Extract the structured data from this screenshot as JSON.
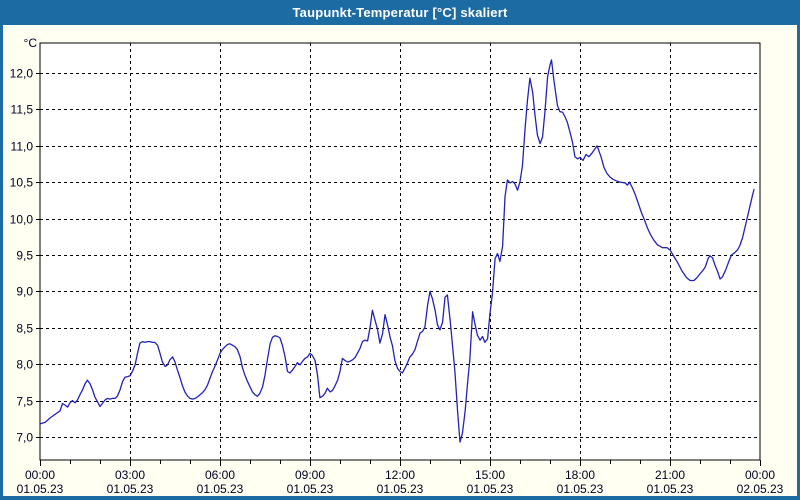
{
  "window": {
    "title": "Taupunkt-Temperatur [°C] skaliert"
  },
  "colors": {
    "titlebar_bg": "#1d6ba3",
    "titlebar_text": "#ffffff",
    "window_bg": "#fffff2",
    "plot_bg": "#ffffff",
    "grid": "#000000",
    "axis_text": "#000022",
    "line": "#2222bb"
  },
  "chart_data": {
    "type": "line",
    "title": "Taupunkt-Temperatur [°C] skaliert",
    "y_unit": "°C",
    "grid": "dotted",
    "legend": "none",
    "xlim_hours": [
      0,
      24
    ],
    "ylim": [
      6.684,
      12.412
    ],
    "yticks": [
      {
        "v": 7.0,
        "label": "7,0"
      },
      {
        "v": 7.5,
        "label": "7,5"
      },
      {
        "v": 8.0,
        "label": "8,0"
      },
      {
        "v": 8.5,
        "label": "8,5"
      },
      {
        "v": 9.0,
        "label": "9,0"
      },
      {
        "v": 9.5,
        "label": "9,5"
      },
      {
        "v": 10.0,
        "label": "10,0"
      },
      {
        "v": 10.5,
        "label": "10,5"
      },
      {
        "v": 11.0,
        "label": "11,0"
      },
      {
        "v": 11.5,
        "label": "11,5"
      },
      {
        "v": 12.0,
        "label": "12,0"
      }
    ],
    "xticks": [
      {
        "t": 0,
        "time": "00:00",
        "date": "01.05.23"
      },
      {
        "t": 3,
        "time": "03:00",
        "date": "01.05.23"
      },
      {
        "t": 6,
        "time": "06:00",
        "date": "01.05.23"
      },
      {
        "t": 9,
        "time": "09:00",
        "date": "01.05.23"
      },
      {
        "t": 12,
        "time": "12:00",
        "date": "01.05.23"
      },
      {
        "t": 15,
        "time": "15:00",
        "date": "01.05.23"
      },
      {
        "t": 18,
        "time": "18:00",
        "date": "01.05.23"
      },
      {
        "t": 21,
        "time": "21:00",
        "date": "01.05.23"
      },
      {
        "t": 24,
        "time": "00:00",
        "date": "02.05.23"
      }
    ],
    "series": [
      {
        "name": "Taupunkt-Temperatur",
        "color": "#2222bb",
        "points": [
          [
            0.0,
            7.18
          ],
          [
            0.17,
            7.2
          ],
          [
            0.33,
            7.26
          ],
          [
            0.5,
            7.31
          ],
          [
            0.67,
            7.36
          ],
          [
            0.75,
            7.46
          ],
          [
            0.83,
            7.44
          ],
          [
            0.92,
            7.41
          ],
          [
            1.0,
            7.47
          ],
          [
            1.08,
            7.5
          ],
          [
            1.17,
            7.47
          ],
          [
            1.25,
            7.51
          ],
          [
            1.33,
            7.58
          ],
          [
            1.42,
            7.65
          ],
          [
            1.5,
            7.73
          ],
          [
            1.58,
            7.78
          ],
          [
            1.67,
            7.73
          ],
          [
            1.75,
            7.65
          ],
          [
            1.83,
            7.55
          ],
          [
            1.92,
            7.48
          ],
          [
            2.0,
            7.42
          ],
          [
            2.08,
            7.46
          ],
          [
            2.17,
            7.51
          ],
          [
            2.25,
            7.53
          ],
          [
            2.33,
            7.52
          ],
          [
            2.42,
            7.53
          ],
          [
            2.5,
            7.53
          ],
          [
            2.58,
            7.56
          ],
          [
            2.67,
            7.65
          ],
          [
            2.75,
            7.76
          ],
          [
            2.83,
            7.82
          ],
          [
            2.92,
            7.83
          ],
          [
            3.0,
            7.84
          ],
          [
            3.08,
            7.9
          ],
          [
            3.17,
            7.99
          ],
          [
            3.25,
            8.15
          ],
          [
            3.33,
            8.29
          ],
          [
            3.42,
            8.31
          ],
          [
            3.5,
            8.3
          ],
          [
            3.58,
            8.31
          ],
          [
            3.67,
            8.31
          ],
          [
            3.75,
            8.3
          ],
          [
            3.83,
            8.3
          ],
          [
            3.92,
            8.26
          ],
          [
            4.0,
            8.15
          ],
          [
            4.08,
            8.03
          ],
          [
            4.17,
            7.97
          ],
          [
            4.25,
            7.99
          ],
          [
            4.33,
            8.06
          ],
          [
            4.42,
            8.1
          ],
          [
            4.5,
            8.03
          ],
          [
            4.58,
            7.92
          ],
          [
            4.67,
            7.81
          ],
          [
            4.75,
            7.7
          ],
          [
            4.83,
            7.62
          ],
          [
            4.92,
            7.56
          ],
          [
            5.0,
            7.53
          ],
          [
            5.08,
            7.52
          ],
          [
            5.17,
            7.53
          ],
          [
            5.25,
            7.55
          ],
          [
            5.33,
            7.58
          ],
          [
            5.42,
            7.61
          ],
          [
            5.5,
            7.65
          ],
          [
            5.58,
            7.71
          ],
          [
            5.67,
            7.81
          ],
          [
            5.75,
            7.9
          ],
          [
            5.83,
            7.97
          ],
          [
            5.92,
            8.06
          ],
          [
            6.0,
            8.15
          ],
          [
            6.08,
            8.2
          ],
          [
            6.17,
            8.24
          ],
          [
            6.25,
            8.27
          ],
          [
            6.33,
            8.28
          ],
          [
            6.42,
            8.26
          ],
          [
            6.5,
            8.24
          ],
          [
            6.58,
            8.2
          ],
          [
            6.67,
            8.1
          ],
          [
            6.75,
            7.95
          ],
          [
            6.83,
            7.85
          ],
          [
            6.92,
            7.76
          ],
          [
            7.0,
            7.69
          ],
          [
            7.08,
            7.62
          ],
          [
            7.17,
            7.58
          ],
          [
            7.25,
            7.56
          ],
          [
            7.33,
            7.6
          ],
          [
            7.42,
            7.69
          ],
          [
            7.5,
            7.85
          ],
          [
            7.58,
            8.06
          ],
          [
            7.67,
            8.28
          ],
          [
            7.75,
            8.37
          ],
          [
            7.83,
            8.39
          ],
          [
            7.92,
            8.38
          ],
          [
            8.0,
            8.36
          ],
          [
            8.08,
            8.26
          ],
          [
            8.17,
            8.1
          ],
          [
            8.25,
            7.9
          ],
          [
            8.33,
            7.88
          ],
          [
            8.42,
            7.92
          ],
          [
            8.5,
            7.97
          ],
          [
            8.58,
            8.02
          ],
          [
            8.67,
            7.99
          ],
          [
            8.75,
            8.04
          ],
          [
            8.83,
            8.08
          ],
          [
            8.92,
            8.1
          ],
          [
            9.0,
            8.15
          ],
          [
            9.08,
            8.12
          ],
          [
            9.17,
            8.05
          ],
          [
            9.25,
            7.85
          ],
          [
            9.33,
            7.54
          ],
          [
            9.42,
            7.56
          ],
          [
            9.5,
            7.6
          ],
          [
            9.58,
            7.67
          ],
          [
            9.67,
            7.62
          ],
          [
            9.75,
            7.64
          ],
          [
            9.83,
            7.7
          ],
          [
            9.92,
            7.78
          ],
          [
            10.0,
            7.9
          ],
          [
            10.08,
            8.08
          ],
          [
            10.17,
            8.05
          ],
          [
            10.25,
            8.03
          ],
          [
            10.33,
            8.04
          ],
          [
            10.42,
            8.06
          ],
          [
            10.5,
            8.09
          ],
          [
            10.58,
            8.15
          ],
          [
            10.67,
            8.22
          ],
          [
            10.75,
            8.31
          ],
          [
            10.83,
            8.33
          ],
          [
            10.92,
            8.32
          ],
          [
            11.0,
            8.5
          ],
          [
            11.08,
            8.74
          ],
          [
            11.17,
            8.6
          ],
          [
            11.25,
            8.48
          ],
          [
            11.33,
            8.29
          ],
          [
            11.42,
            8.42
          ],
          [
            11.5,
            8.68
          ],
          [
            11.58,
            8.55
          ],
          [
            11.67,
            8.37
          ],
          [
            11.75,
            8.25
          ],
          [
            11.83,
            8.05
          ],
          [
            11.92,
            7.94
          ],
          [
            12.0,
            7.9
          ],
          [
            12.08,
            7.88
          ],
          [
            12.17,
            7.95
          ],
          [
            12.25,
            8.02
          ],
          [
            12.33,
            8.1
          ],
          [
            12.42,
            8.14
          ],
          [
            12.5,
            8.2
          ],
          [
            12.58,
            8.31
          ],
          [
            12.67,
            8.43
          ],
          [
            12.75,
            8.45
          ],
          [
            12.83,
            8.51
          ],
          [
            12.92,
            8.81
          ],
          [
            13.0,
            9.0
          ],
          [
            13.08,
            8.9
          ],
          [
            13.17,
            8.74
          ],
          [
            13.25,
            8.54
          ],
          [
            13.33,
            8.47
          ],
          [
            13.42,
            8.58
          ],
          [
            13.5,
            8.92
          ],
          [
            13.58,
            8.95
          ],
          [
            13.67,
            8.61
          ],
          [
            13.75,
            8.26
          ],
          [
            13.83,
            7.9
          ],
          [
            13.92,
            7.35
          ],
          [
            14.0,
            6.93
          ],
          [
            14.08,
            7.05
          ],
          [
            14.17,
            7.35
          ],
          [
            14.25,
            7.73
          ],
          [
            14.33,
            8.08
          ],
          [
            14.42,
            8.72
          ],
          [
            14.5,
            8.55
          ],
          [
            14.58,
            8.4
          ],
          [
            14.67,
            8.33
          ],
          [
            14.75,
            8.38
          ],
          [
            14.83,
            8.3
          ],
          [
            14.92,
            8.35
          ],
          [
            15.0,
            8.7
          ],
          [
            15.08,
            8.97
          ],
          [
            15.17,
            9.45
          ],
          [
            15.25,
            9.52
          ],
          [
            15.33,
            9.41
          ],
          [
            15.42,
            9.62
          ],
          [
            15.5,
            10.3
          ],
          [
            15.58,
            10.53
          ],
          [
            15.67,
            10.49
          ],
          [
            15.75,
            10.51
          ],
          [
            15.83,
            10.48
          ],
          [
            15.92,
            10.39
          ],
          [
            16.0,
            10.51
          ],
          [
            16.08,
            10.72
          ],
          [
            16.17,
            11.24
          ],
          [
            16.25,
            11.63
          ],
          [
            16.33,
            11.93
          ],
          [
            16.42,
            11.74
          ],
          [
            16.5,
            11.42
          ],
          [
            16.58,
            11.15
          ],
          [
            16.67,
            11.03
          ],
          [
            16.75,
            11.12
          ],
          [
            16.83,
            11.46
          ],
          [
            16.92,
            11.95
          ],
          [
            17.0,
            12.11
          ],
          [
            17.05,
            12.18
          ],
          [
            17.13,
            11.9
          ],
          [
            17.25,
            11.55
          ],
          [
            17.33,
            11.47
          ],
          [
            17.42,
            11.46
          ],
          [
            17.5,
            11.4
          ],
          [
            17.58,
            11.32
          ],
          [
            17.67,
            11.18
          ],
          [
            17.75,
            11.05
          ],
          [
            17.83,
            10.85
          ],
          [
            17.92,
            10.82
          ],
          [
            18.0,
            10.84
          ],
          [
            18.1,
            10.8
          ],
          [
            18.2,
            10.88
          ],
          [
            18.3,
            10.85
          ],
          [
            18.4,
            10.9
          ],
          [
            18.57,
            11.0
          ],
          [
            18.7,
            10.85
          ],
          [
            18.8,
            10.7
          ],
          [
            18.9,
            10.62
          ],
          [
            19.0,
            10.57
          ],
          [
            19.1,
            10.54
          ],
          [
            19.2,
            10.52
          ],
          [
            19.33,
            10.5
          ],
          [
            19.5,
            10.49
          ],
          [
            19.58,
            10.46
          ],
          [
            19.65,
            10.5
          ],
          [
            19.75,
            10.42
          ],
          [
            19.85,
            10.32
          ],
          [
            19.95,
            10.2
          ],
          [
            20.05,
            10.08
          ],
          [
            20.15,
            9.98
          ],
          [
            20.25,
            9.87
          ],
          [
            20.35,
            9.78
          ],
          [
            20.45,
            9.71
          ],
          [
            20.58,
            9.64
          ],
          [
            20.75,
            9.6
          ],
          [
            20.9,
            9.6
          ],
          [
            21.0,
            9.57
          ],
          [
            21.1,
            9.5
          ],
          [
            21.25,
            9.4
          ],
          [
            21.4,
            9.28
          ],
          [
            21.55,
            9.19
          ],
          [
            21.67,
            9.15
          ],
          [
            21.8,
            9.15
          ],
          [
            21.9,
            9.19
          ],
          [
            22.0,
            9.24
          ],
          [
            22.1,
            9.29
          ],
          [
            22.17,
            9.33
          ],
          [
            22.27,
            9.45
          ],
          [
            22.33,
            9.49
          ],
          [
            22.42,
            9.46
          ],
          [
            22.5,
            9.36
          ],
          [
            22.58,
            9.28
          ],
          [
            22.67,
            9.17
          ],
          [
            22.75,
            9.2
          ],
          [
            22.85,
            9.29
          ],
          [
            22.95,
            9.4
          ],
          [
            23.05,
            9.5
          ],
          [
            23.15,
            9.53
          ],
          [
            23.25,
            9.57
          ],
          [
            23.33,
            9.63
          ],
          [
            23.42,
            9.74
          ],
          [
            23.5,
            9.88
          ],
          [
            23.58,
            10.02
          ],
          [
            23.67,
            10.18
          ],
          [
            23.75,
            10.32
          ],
          [
            23.8,
            10.4
          ]
        ]
      }
    ]
  }
}
